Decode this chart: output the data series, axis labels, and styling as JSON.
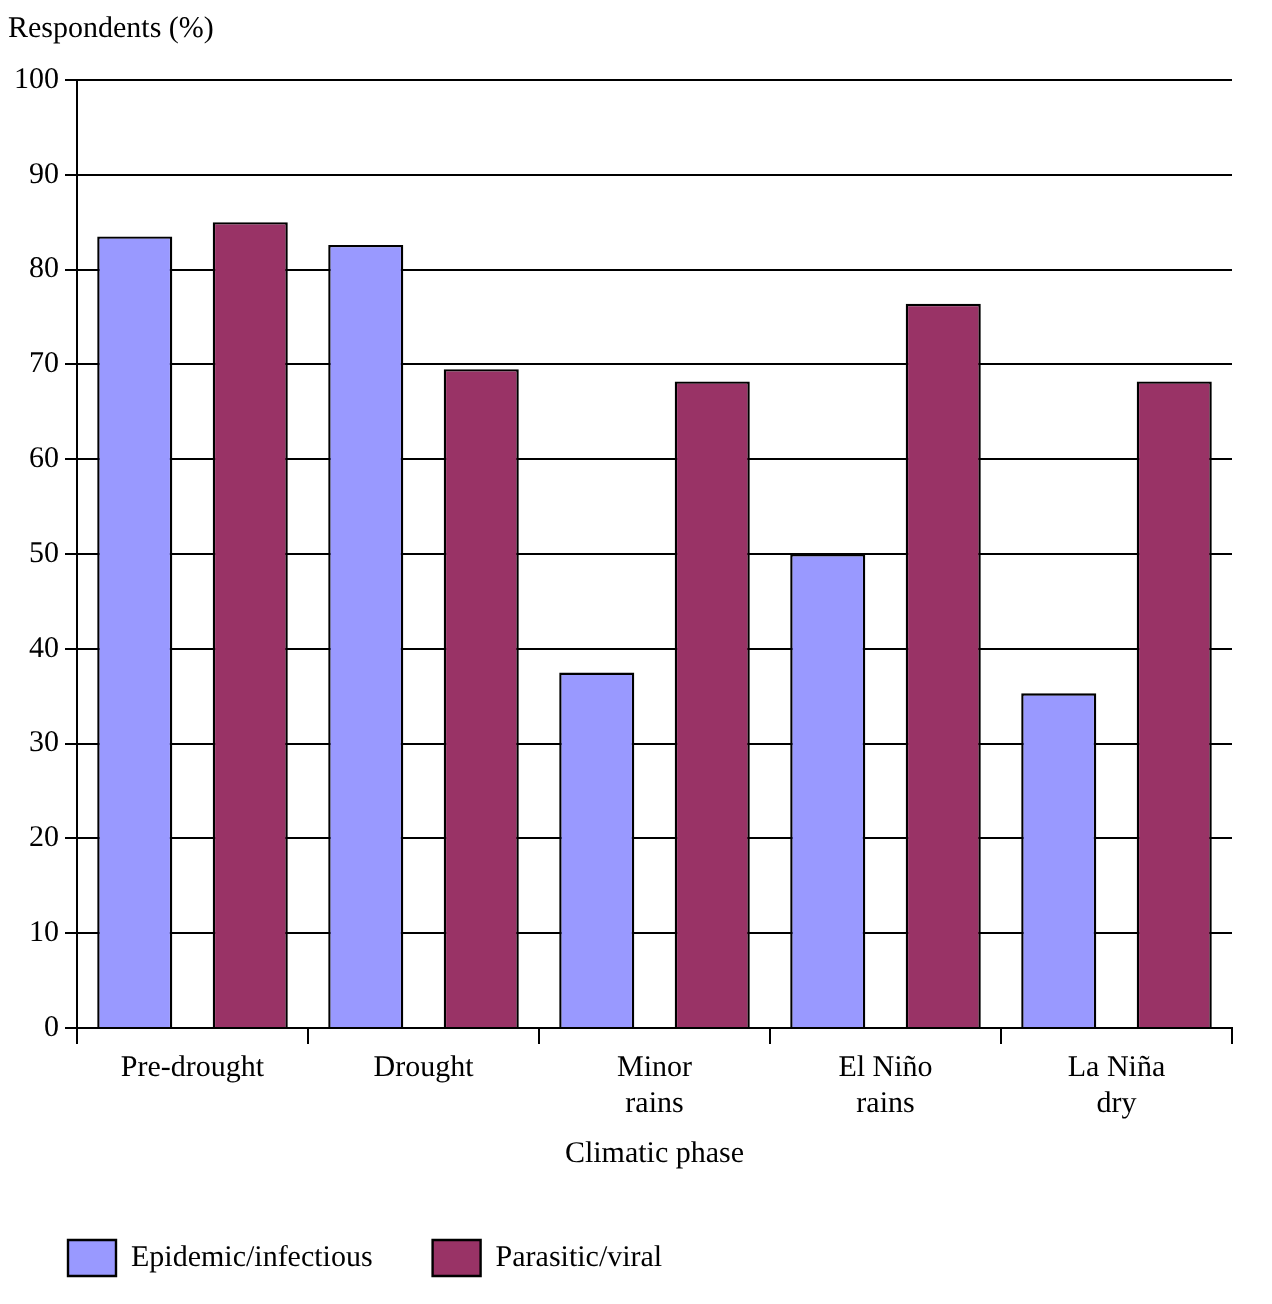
{
  "chart_data": {
    "type": "bar",
    "ylabel": "Respondents (%)",
    "xlabel": "Climatic phase",
    "categories": [
      "Pre-drought",
      "Drought",
      "Minor rains",
      "El Niño rains",
      "La Niña dry"
    ],
    "series": [
      {
        "name": "Epidemic/infectious",
        "color": "#9999ff",
        "values": [
          83.5,
          82.6,
          37.5,
          50,
          35.3
        ]
      },
      {
        "name": "Parasitic/viral",
        "color": "#993366",
        "values": [
          85,
          69.5,
          68.2,
          76.4,
          68.2
        ]
      }
    ],
    "ylim": [
      0,
      100
    ],
    "yticks": [
      0,
      10,
      20,
      30,
      40,
      50,
      60,
      70,
      80,
      90,
      100
    ],
    "grid": "y",
    "legend": "bottom"
  }
}
